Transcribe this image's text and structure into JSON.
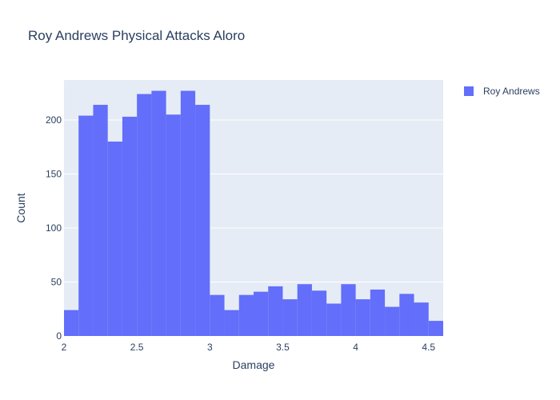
{
  "chart_data": {
    "type": "bar",
    "title": "Roy Andrews Physical Attacks Aloro",
    "xlabel": "Damage",
    "ylabel": "Count",
    "xlim": [
      2,
      4.6
    ],
    "ylim": [
      0,
      237
    ],
    "xticks": [
      2,
      2.5,
      3,
      3.5,
      4,
      4.5
    ],
    "xtick_labels": [
      "2",
      "2.5",
      "3",
      "3.5",
      "4",
      "4.5"
    ],
    "yticks": [
      0,
      50,
      100,
      150,
      200
    ],
    "ytick_labels": [
      "0",
      "50",
      "100",
      "150",
      "200"
    ],
    "grid": true,
    "legend_position": "top-right",
    "bin_start": 2,
    "bin_width": 0.1,
    "series": [
      {
        "name": "Roy Andrews",
        "color": "#636efa",
        "values": [
          24,
          204,
          214,
          180,
          203,
          224,
          227,
          205,
          227,
          214,
          38,
          24,
          38,
          41,
          46,
          34,
          48,
          42,
          30,
          48,
          34,
          43,
          27,
          39,
          31,
          14
        ]
      }
    ]
  },
  "colors": {
    "plot_background": "#e5ecf6",
    "grid": "#ffffff",
    "text": "#2a3f5f"
  }
}
